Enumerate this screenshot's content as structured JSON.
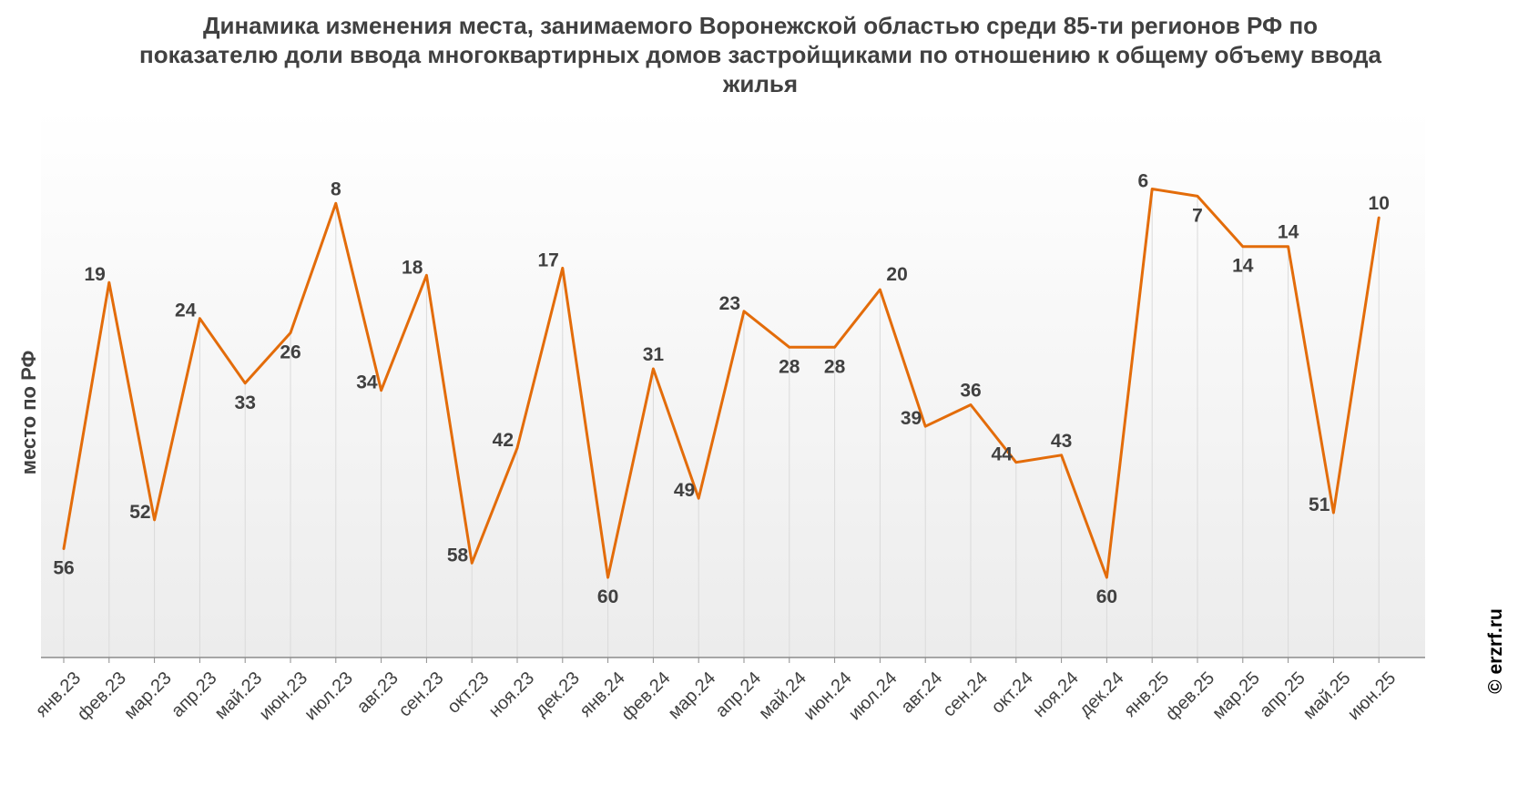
{
  "chart_data": {
    "type": "line",
    "title": "Динамика изменения места, занимаемого Воронежской областью среди 85-ти регионов РФ по показателю доли ввода многоквартирных домов застройщиками по отношению к общему объему ввода жилья",
    "ylabel": "место по РФ",
    "xlabel": "",
    "y_inverted": true,
    "ylim": [
      1,
      85
    ],
    "grid": "vertical drop lines",
    "categories": [
      "янв.23",
      "фев.23",
      "мар.23",
      "апр.23",
      "май.23",
      "июн.23",
      "июл.23",
      "авг.23",
      "сен.23",
      "окт.23",
      "ноя.23",
      "дек.23",
      "янв.24",
      "фев.24",
      "мар.24",
      "апр.24",
      "май.24",
      "июн.24",
      "июл.24",
      "авг.24",
      "сен.24",
      "окт.24",
      "ноя.24",
      "дек.24",
      "янв.25",
      "фев.25",
      "мар.25",
      "апр.25",
      "май.25",
      "июн.25"
    ],
    "values": [
      56,
      19,
      52,
      24,
      33,
      26,
      8,
      34,
      18,
      58,
      42,
      17,
      60,
      31,
      49,
      23,
      28,
      28,
      20,
      39,
      36,
      44,
      43,
      60,
      6,
      7,
      14,
      14,
      51,
      10
    ],
    "label_positions": [
      "below",
      "left",
      "left",
      "left",
      "below",
      "below",
      "above",
      "left",
      "left",
      "left",
      "left",
      "left",
      "below",
      "above",
      "left",
      "left",
      "below",
      "below",
      "right",
      "left",
      "above",
      "left",
      "above",
      "below",
      "left",
      "below",
      "below",
      "above",
      "left",
      "above"
    ],
    "line_color": "#e36c0a",
    "watermark": "© erzrf.ru"
  }
}
